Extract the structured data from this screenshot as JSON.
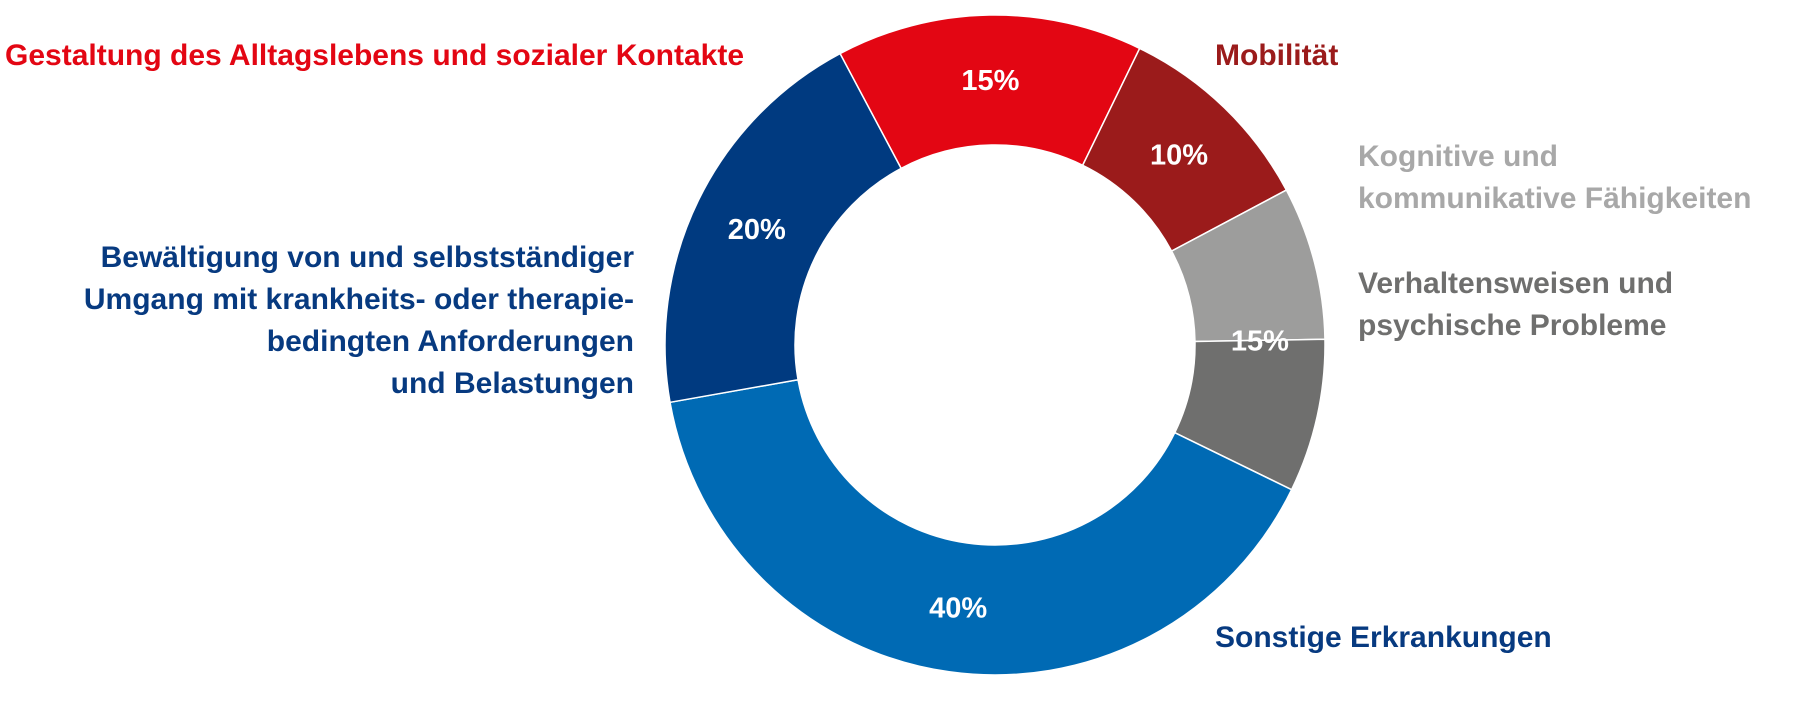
{
  "chart_data": {
    "type": "pie",
    "donut": true,
    "slices": [
      {
        "label_lines": [
          "Gestaltung des Alltagslebens und sozialer Kontakte"
        ],
        "value_label": "15%",
        "color": "#e30613",
        "label_color": "#e30613"
      },
      {
        "label_lines": [
          "Mobilität"
        ],
        "value_label": "10%",
        "color": "#9b1b1b",
        "label_color": "#9b1b1b"
      },
      {
        "label_lines": [
          "Kognitive und",
          "kommunikative Fähigkeiten"
        ],
        "color": "#9d9d9c",
        "label_color": "#a8a8a8"
      },
      {
        "label_lines": [
          "Verhaltensweisen und",
          "psychische Probleme"
        ],
        "color": "#6f6f6e",
        "label_color": "#6f6f6e"
      },
      {
        "label_lines": [
          "Sonstige Erkrankungen"
        ],
        "value_label": "40%",
        "color": "#006ab4",
        "label_color": "#073a80"
      },
      {
        "label_lines": [
          "Bewältigung von und selbstständiger",
          "Umgang mit krankheits- oder therapie-",
          "bedingten Anforderungen",
          "und Belastungen"
        ],
        "value_label": "20%",
        "color": "#003a80",
        "label_color": "#073a80"
      }
    ],
    "combined_value_label": "15%",
    "combined_slices": [
      "Kognitive und kommunikative Fähigkeiten",
      "Verhaltensweisen und psychische Probleme"
    ],
    "values": [
      15,
      10,
      7.5,
      7.5,
      40,
      20
    ]
  }
}
